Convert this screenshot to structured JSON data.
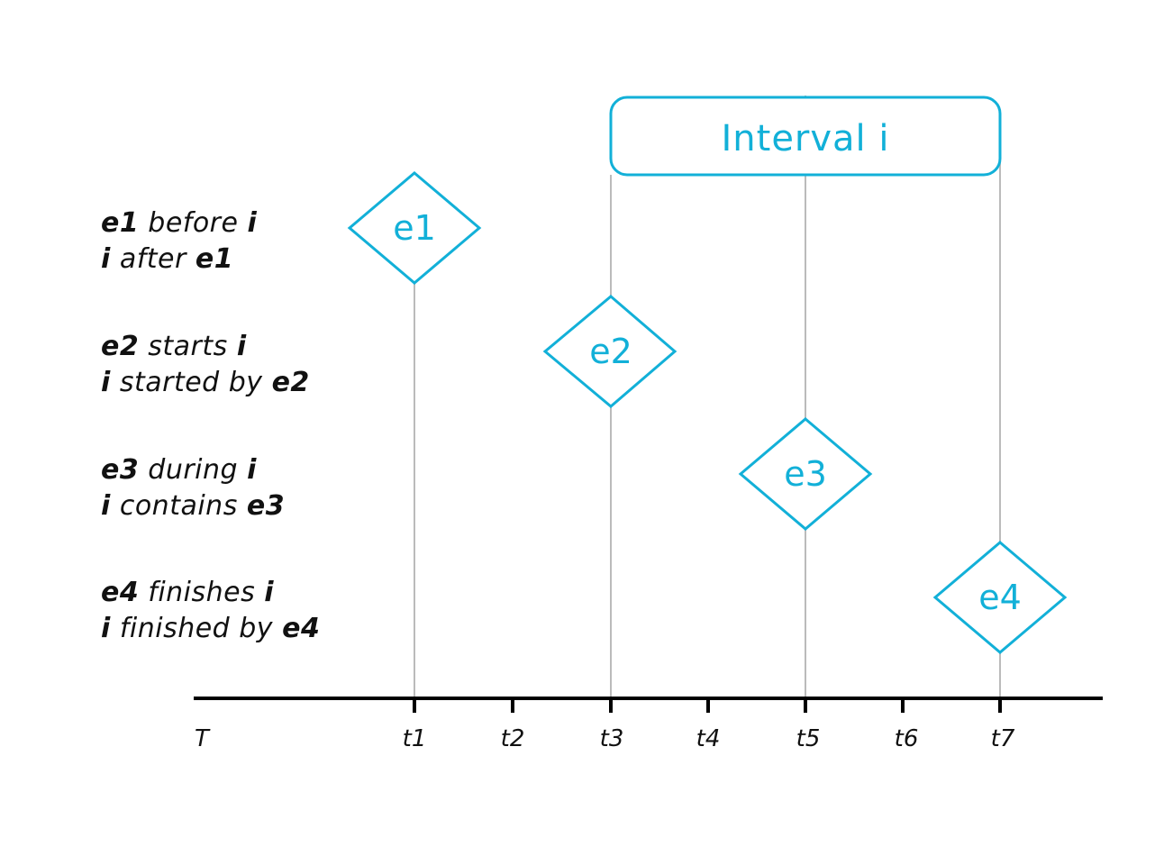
{
  "colors": {
    "accent": "#12b0d8",
    "guide_line": "#bbbbbb",
    "axis": "#000000",
    "text": "#111111"
  },
  "interval": {
    "label": "Interval i"
  },
  "events": [
    {
      "label": "e1"
    },
    {
      "label": "e2"
    },
    {
      "label": "e3"
    },
    {
      "label": "e4"
    }
  ],
  "relations": [
    {
      "line1": {
        "a": "e1",
        "verb": " before ",
        "b": "i"
      },
      "line2": {
        "a": "i",
        "verb": " after ",
        "b": "e1"
      }
    },
    {
      "line1": {
        "a": "e2",
        "verb": " starts ",
        "b": "i"
      },
      "line2": {
        "a": "i",
        "verb": " started by ",
        "b": "e2"
      }
    },
    {
      "line1": {
        "a": "e3",
        "verb": " during ",
        "b": "i"
      },
      "line2": {
        "a": "i",
        "verb": " contains ",
        "b": "e3"
      }
    },
    {
      "line1": {
        "a": "e4",
        "verb": " finishes ",
        "b": "i"
      },
      "line2": {
        "a": "i",
        "verb": " finished by ",
        "b": "e4"
      }
    }
  ],
  "axis": {
    "label": "T",
    "ticks": [
      "t1",
      "t2",
      "t3",
      "t4",
      "t5",
      "t6",
      "t7"
    ]
  }
}
